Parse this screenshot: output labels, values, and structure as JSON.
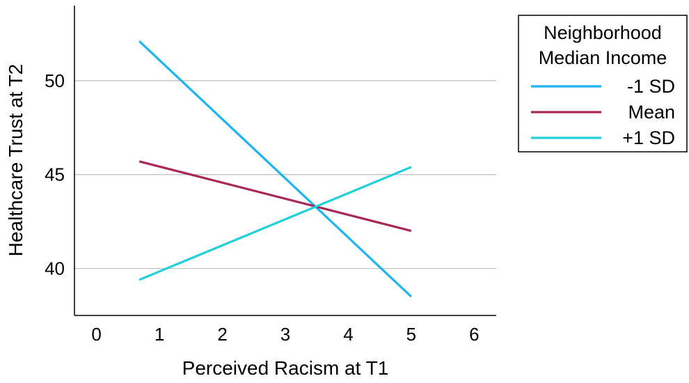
{
  "chart_data": {
    "type": "line",
    "title": "",
    "xlabel": "Perceived Racism at T1",
    "ylabel": "Healthcare Trust at T2",
    "xlim": [
      -0.35,
      6.35
    ],
    "ylim": [
      37.5,
      54.0
    ],
    "xticks": [
      0,
      1,
      2,
      3,
      4,
      5,
      6
    ],
    "yticks": [
      40,
      45,
      50
    ],
    "grid": "horizontal",
    "legend": {
      "title_lines": [
        "Neighborhood",
        "Median Income"
      ],
      "placement": "right"
    },
    "series": [
      {
        "name": "-1 SD",
        "color": "#1fb4f0",
        "points": [
          [
            0.68,
            52.1
          ],
          [
            5.0,
            38.5
          ]
        ]
      },
      {
        "name": "Mean",
        "color": "#a8285a",
        "points": [
          [
            0.68,
            45.7
          ],
          [
            5.0,
            42.0
          ]
        ]
      },
      {
        "name": "+1 SD",
        "color": "#22d0da",
        "points": [
          [
            0.68,
            39.4
          ],
          [
            5.0,
            45.4
          ]
        ]
      }
    ]
  }
}
